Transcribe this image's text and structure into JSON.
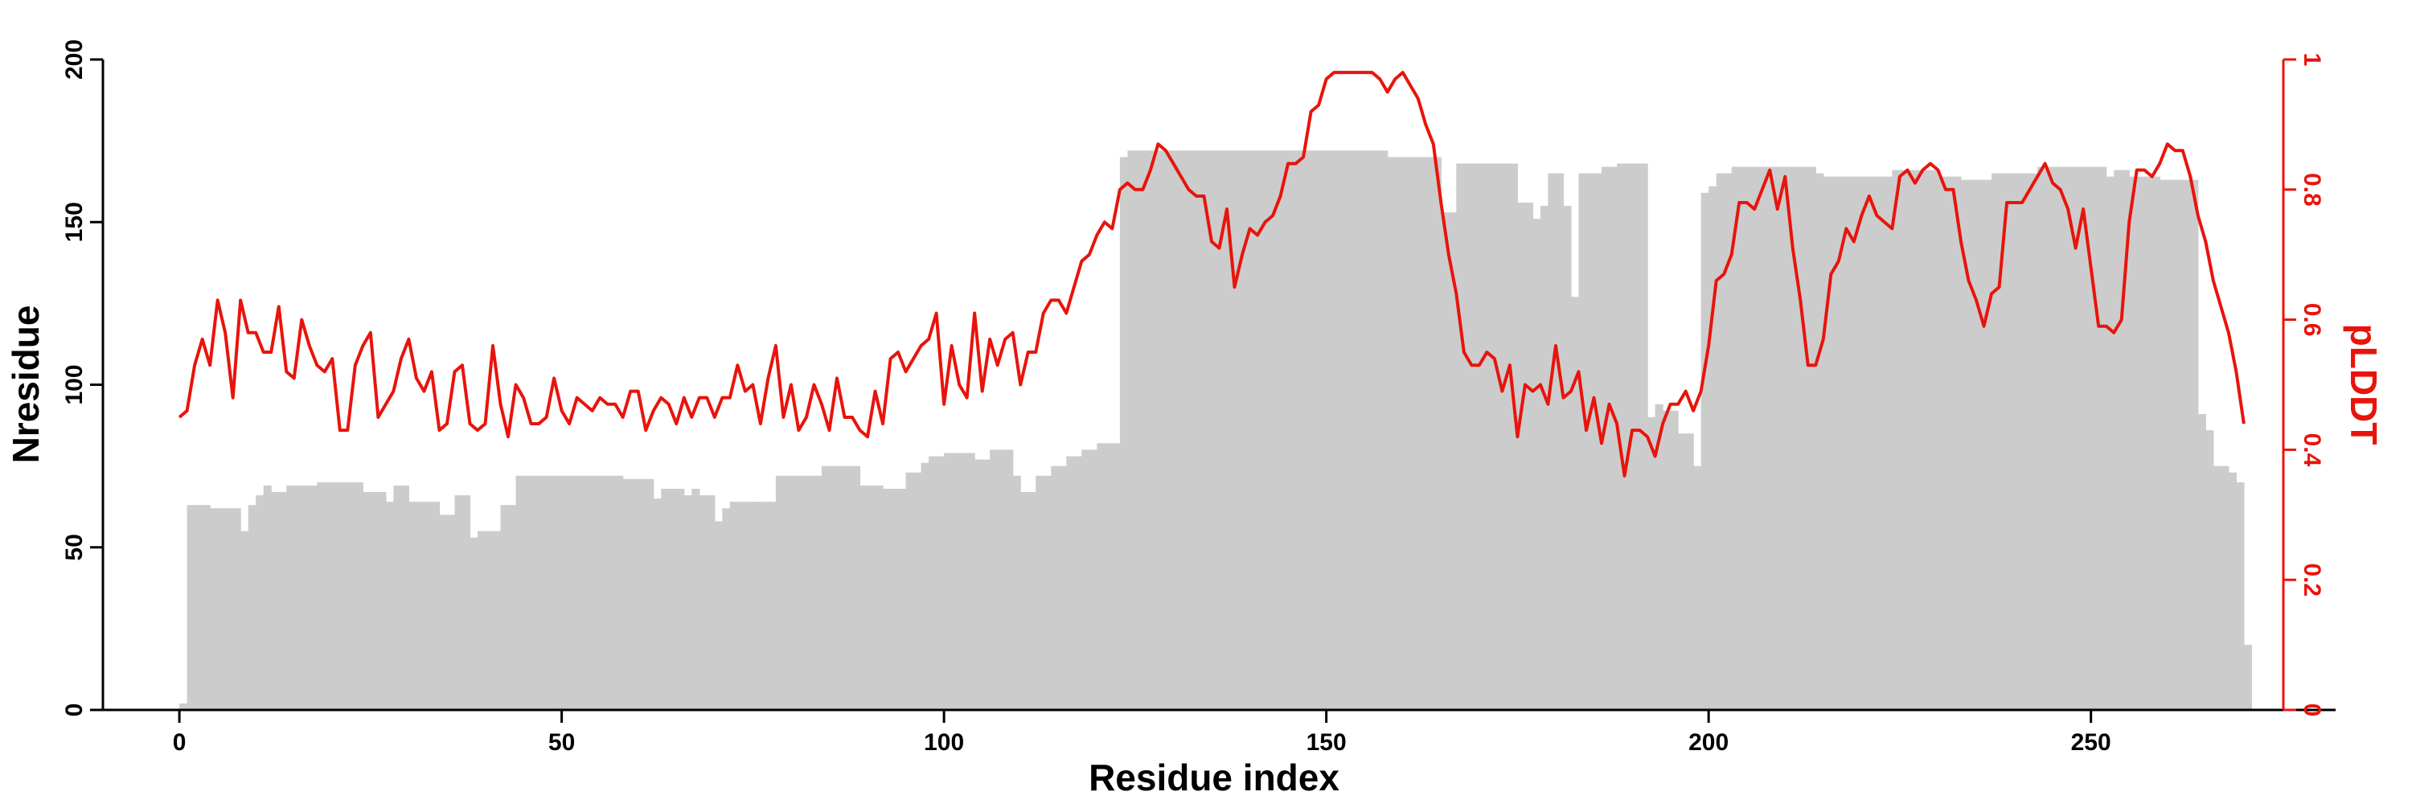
{
  "chart_data": {
    "type": "bar",
    "xlabel": "Residue index",
    "ylabel": "Nresidue",
    "y2label": "pLDDT",
    "xlim": [
      -10,
      282
    ],
    "xticks": [
      0,
      50,
      100,
      150,
      200,
      250
    ],
    "ylim": [
      0,
      200
    ],
    "yticks": [
      0,
      50,
      100,
      150,
      200
    ],
    "y2lim": [
      0,
      1
    ],
    "y2ticks": [
      "0",
      "0.2",
      "0.4",
      "0.6",
      "0.8",
      "1"
    ],
    "grid": false,
    "colors": {
      "bars": "#cccccc",
      "line": "#e8140c",
      "axis": "#000000",
      "y2axis": "#e8140c"
    },
    "bar_segments": [
      [
        0,
        1,
        2
      ],
      [
        1,
        4,
        63
      ],
      [
        4,
        8,
        62
      ],
      [
        8,
        9,
        55
      ],
      [
        9,
        10,
        63
      ],
      [
        10,
        11,
        66
      ],
      [
        11,
        12,
        69
      ],
      [
        12,
        14,
        67
      ],
      [
        14,
        18,
        69
      ],
      [
        18,
        24,
        70
      ],
      [
        24,
        27,
        67
      ],
      [
        27,
        28,
        64
      ],
      [
        28,
        30,
        69
      ],
      [
        30,
        34,
        64
      ],
      [
        34,
        36,
        60
      ],
      [
        36,
        38,
        66
      ],
      [
        38,
        39,
        53
      ],
      [
        39,
        42,
        55
      ],
      [
        42,
        44,
        63
      ],
      [
        44,
        58,
        72
      ],
      [
        58,
        62,
        71
      ],
      [
        62,
        63,
        65
      ],
      [
        63,
        66,
        68
      ],
      [
        66,
        67,
        66
      ],
      [
        67,
        68,
        68
      ],
      [
        68,
        70,
        66
      ],
      [
        70,
        71,
        58
      ],
      [
        71,
        72,
        62
      ],
      [
        72,
        75,
        64
      ],
      [
        75,
        78,
        64
      ],
      [
        78,
        84,
        72
      ],
      [
        84,
        89,
        75
      ],
      [
        89,
        92,
        69
      ],
      [
        92,
        95,
        68
      ],
      [
        95,
        97,
        73
      ],
      [
        97,
        98,
        76
      ],
      [
        98,
        100,
        78
      ],
      [
        100,
        104,
        79
      ],
      [
        104,
        106,
        77
      ],
      [
        106,
        109,
        80
      ],
      [
        109,
        110,
        72
      ],
      [
        110,
        112,
        67
      ],
      [
        112,
        114,
        72
      ],
      [
        114,
        116,
        75
      ],
      [
        116,
        118,
        78
      ],
      [
        118,
        120,
        80
      ],
      [
        120,
        123,
        82
      ],
      [
        123,
        124,
        170
      ],
      [
        124,
        126,
        172
      ],
      [
        126,
        158,
        172
      ],
      [
        158,
        165,
        170
      ],
      [
        165,
        167,
        153
      ],
      [
        167,
        169,
        168
      ],
      [
        169,
        172,
        168
      ],
      [
        172,
        175,
        168
      ],
      [
        175,
        177,
        156
      ],
      [
        177,
        178,
        151
      ],
      [
        178,
        179,
        155
      ],
      [
        179,
        181,
        165
      ],
      [
        181,
        182,
        155
      ],
      [
        182,
        183,
        127
      ],
      [
        183,
        186,
        165
      ],
      [
        186,
        188,
        167
      ],
      [
        188,
        192,
        168
      ],
      [
        192,
        193,
        90
      ],
      [
        193,
        194,
        94
      ],
      [
        194,
        196,
        92
      ],
      [
        196,
        198,
        85
      ],
      [
        198,
        199,
        75
      ],
      [
        199,
        200,
        159
      ],
      [
        200,
        201,
        161
      ],
      [
        201,
        203,
        165
      ],
      [
        203,
        214,
        167
      ],
      [
        214,
        215,
        165
      ],
      [
        215,
        216,
        164
      ],
      [
        216,
        218,
        164
      ],
      [
        218,
        224,
        164
      ],
      [
        224,
        230,
        166
      ],
      [
        230,
        233,
        164
      ],
      [
        233,
        237,
        163
      ],
      [
        237,
        243,
        165
      ],
      [
        243,
        249,
        167
      ],
      [
        249,
        252,
        167
      ],
      [
        252,
        253,
        164
      ],
      [
        253,
        255,
        166
      ],
      [
        255,
        259,
        164
      ],
      [
        259,
        264,
        163
      ],
      [
        264,
        265,
        91
      ],
      [
        265,
        266,
        86
      ],
      [
        266,
        268,
        75
      ],
      [
        268,
        269,
        73
      ],
      [
        269,
        270,
        70
      ],
      [
        270,
        271,
        20
      ]
    ],
    "series": [
      {
        "type": "line",
        "axis": "right",
        "x_start": 0,
        "x_step": 1,
        "values": [
          0.45,
          0.46,
          0.53,
          0.57,
          0.53,
          0.63,
          0.58,
          0.48,
          0.63,
          0.58,
          0.58,
          0.55,
          0.55,
          0.62,
          0.52,
          0.51,
          0.6,
          0.56,
          0.53,
          0.52,
          0.54,
          0.43,
          0.43,
          0.53,
          0.56,
          0.58,
          0.45,
          0.47,
          0.49,
          0.54,
          0.57,
          0.51,
          0.49,
          0.52,
          0.43,
          0.44,
          0.52,
          0.53,
          0.44,
          0.43,
          0.44,
          0.56,
          0.47,
          0.42,
          0.5,
          0.48,
          0.44,
          0.44,
          0.45,
          0.51,
          0.46,
          0.44,
          0.48,
          0.47,
          0.46,
          0.48,
          0.47,
          0.47,
          0.45,
          0.49,
          0.49,
          0.43,
          0.46,
          0.48,
          0.47,
          0.44,
          0.48,
          0.45,
          0.48,
          0.48,
          0.45,
          0.48,
          0.48,
          0.53,
          0.49,
          0.5,
          0.44,
          0.51,
          0.56,
          0.45,
          0.5,
          0.43,
          0.45,
          0.5,
          0.47,
          0.43,
          0.51,
          0.45,
          0.45,
          0.43,
          0.42,
          0.49,
          0.44,
          0.54,
          0.55,
          0.52,
          0.54,
          0.56,
          0.57,
          0.61,
          0.47,
          0.56,
          0.5,
          0.48,
          0.61,
          0.49,
          0.57,
          0.53,
          0.57,
          0.58,
          0.5,
          0.55,
          0.55,
          0.61,
          0.63,
          0.63,
          0.61,
          0.65,
          0.69,
          0.7,
          0.73,
          0.75,
          0.74,
          0.8,
          0.81,
          0.8,
          0.8,
          0.83,
          0.87,
          0.86,
          0.84,
          0.82,
          0.8,
          0.79,
          0.79,
          0.72,
          0.71,
          0.77,
          0.65,
          0.7,
          0.74,
          0.73,
          0.75,
          0.76,
          0.79,
          0.84,
          0.84,
          0.85,
          0.92,
          0.93,
          0.97,
          0.98,
          0.98,
          0.98,
          0.98,
          0.98,
          0.98,
          0.97,
          0.95,
          0.97,
          0.98,
          0.96,
          0.94,
          0.9,
          0.87,
          0.78,
          0.7,
          0.64,
          0.55,
          0.53,
          0.53,
          0.55,
          0.54,
          0.49,
          0.53,
          0.42,
          0.5,
          0.49,
          0.5,
          0.47,
          0.56,
          0.48,
          0.49,
          0.52,
          0.43,
          0.48,
          0.41,
          0.47,
          0.44,
          0.36,
          0.43,
          0.43,
          0.42,
          0.39,
          0.44,
          0.47,
          0.47,
          0.49,
          0.46,
          0.49,
          0.56,
          0.66,
          0.67,
          0.7,
          0.78,
          0.78,
          0.77,
          0.8,
          0.83,
          0.77,
          0.82,
          0.71,
          0.63,
          0.53,
          0.53,
          0.57,
          0.67,
          0.69,
          0.74,
          0.72,
          0.76,
          0.79,
          0.76,
          0.75,
          0.74,
          0.82,
          0.83,
          0.81,
          0.83,
          0.84,
          0.83,
          0.8,
          0.8,
          0.72,
          0.66,
          0.63,
          0.59,
          0.64,
          0.65,
          0.78,
          0.78,
          0.78,
          0.8,
          0.82,
          0.84,
          0.81,
          0.8,
          0.77,
          0.71,
          0.77,
          0.68,
          0.59,
          0.59,
          0.58,
          0.6,
          0.75,
          0.83,
          0.83,
          0.82,
          0.84,
          0.87,
          0.86,
          0.86,
          0.82,
          0.76,
          0.72,
          0.66,
          0.62,
          0.58,
          0.52,
          0.44
        ]
      }
    ]
  }
}
